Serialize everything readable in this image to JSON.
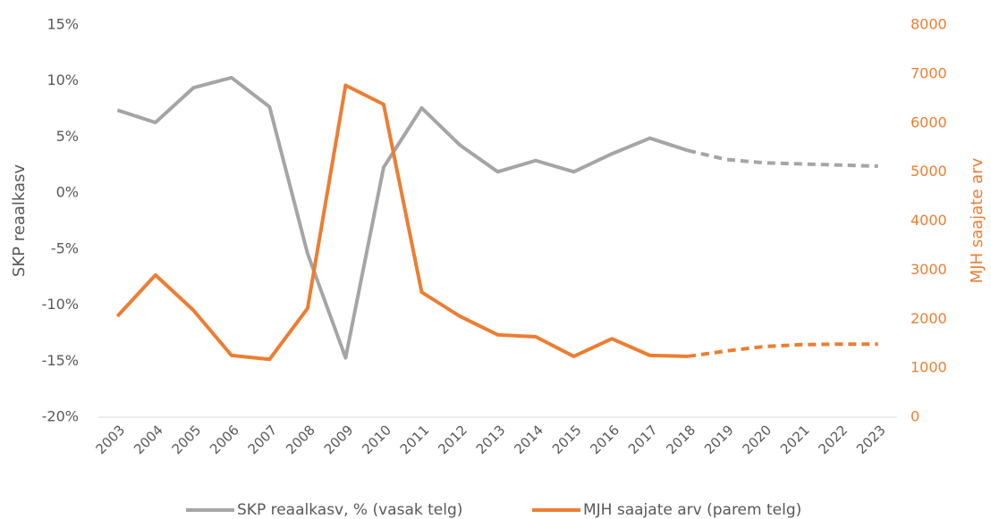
{
  "chart_data": {
    "type": "line",
    "categories": [
      "2003",
      "2004",
      "2005",
      "2006",
      "2007",
      "2008",
      "2009",
      "2010",
      "2011",
      "2012",
      "2013",
      "2014",
      "2015",
      "2016",
      "2017",
      "2018",
      "2019",
      "2020",
      "2021",
      "2022",
      "2023"
    ],
    "series": [
      {
        "name": "SKP reaalkasv, % (vasak telg)",
        "color": "#a5a5a5",
        "axis": "y",
        "values": [
          7.4,
          6.3,
          9.4,
          10.3,
          7.7,
          -5.4,
          -14.7,
          2.3,
          7.6,
          4.3,
          1.9,
          2.9,
          1.9,
          3.5,
          4.9,
          3.8,
          3.0,
          2.7,
          2.6,
          2.5,
          2.4
        ]
      },
      {
        "name": "MJH saajate arv (parem telg)",
        "color": "#ed7d31",
        "axis": "y2",
        "values": [
          2060,
          2900,
          2180,
          1260,
          1180,
          2220,
          6770,
          6380,
          2550,
          2060,
          1680,
          1640,
          1240,
          1600,
          1260,
          1240,
          1350,
          1440,
          1480,
          1490,
          1490
        ]
      }
    ],
    "dashed_from": "2018",
    "ylabel": "SKP reaalkasv",
    "y2label": "MJH saajate arv",
    "ylim": [
      -20,
      15
    ],
    "yticks": [
      {
        "value": -20,
        "label": "-20%"
      },
      {
        "value": -15,
        "label": "-15%"
      },
      {
        "value": -10,
        "label": "-10%"
      },
      {
        "value": -5,
        "label": "-5%"
      },
      {
        "value": 0,
        "label": "0%"
      },
      {
        "value": 5,
        "label": "5%"
      },
      {
        "value": 10,
        "label": "10%"
      },
      {
        "value": 15,
        "label": "15%"
      }
    ],
    "y2lim": [
      0,
      8000
    ],
    "y2ticks": [
      0,
      1000,
      2000,
      3000,
      4000,
      5000,
      6000,
      7000,
      8000
    ],
    "y2color": "#ed7d31",
    "grid": false,
    "legend": "bottom"
  }
}
